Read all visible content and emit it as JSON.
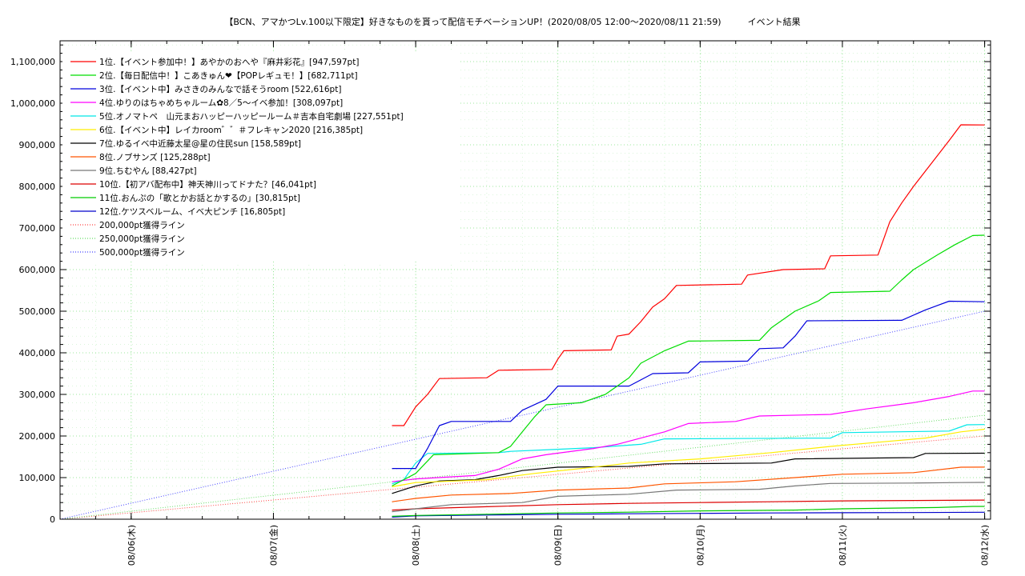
{
  "chart_data": {
    "type": "line",
    "title": "【BCN、アマかつLv.100以下限定】好きなものを貰って配信モチベーションUP！(2020/08/05 12:00〜2020/08/11 21:59)　　　イベント結果",
    "xlabel": "",
    "ylabel": "",
    "xlim": [
      "2020-08-05 12:00",
      "2020-08-12 01:00"
    ],
    "ylim": [
      0,
      1150000
    ],
    "x_ticks": [
      {
        "x": "2020-08-06",
        "label": "08/06(木)"
      },
      {
        "x": "2020-08-07",
        "label": "08/07(金)"
      },
      {
        "x": "2020-08-08",
        "label": "08/08(土)"
      },
      {
        "x": "2020-08-09",
        "label": "08/09(日)"
      },
      {
        "x": "2020-08-10",
        "label": "08/10(月)"
      },
      {
        "x": "2020-08-11",
        "label": "08/11(火)"
      },
      {
        "x": "2020-08-12",
        "label": "08/12(水)"
      }
    ],
    "y_ticks": [
      {
        "y": 0,
        "label": "0"
      },
      {
        "y": 100000,
        "label": "100,000"
      },
      {
        "y": 200000,
        "label": "200,000"
      },
      {
        "y": 300000,
        "label": "300,000"
      },
      {
        "y": 400000,
        "label": "400,000"
      },
      {
        "y": 500000,
        "label": "500,000"
      },
      {
        "y": 600000,
        "label": "600,000"
      },
      {
        "y": 700000,
        "label": "700,000"
      },
      {
        "y": 800000,
        "label": "800,000"
      },
      {
        "y": 900000,
        "label": "900,000"
      },
      {
        "y": 1000000,
        "label": "1,000,000"
      },
      {
        "y": 1100000,
        "label": "1,100,000"
      }
    ],
    "grid": true,
    "legend_position": "top-left",
    "series": [
      {
        "name": "1位.【イベント参加中！】あやかのおへや『麻井彩花』[947,597pt]",
        "color": "#ff0000",
        "points": [
          [
            "2020-08-07 20:00",
            225000
          ],
          [
            "2020-08-07 22:00",
            225000
          ],
          [
            "2020-08-08 00:00",
            270000
          ],
          [
            "2020-08-08 02:00",
            300000
          ],
          [
            "2020-08-08 04:00",
            338000
          ],
          [
            "2020-08-08 12:00",
            340000
          ],
          [
            "2020-08-08 14:00",
            358000
          ],
          [
            "2020-08-08 23:00",
            360000
          ],
          [
            "2020-08-09 00:00",
            385000
          ],
          [
            "2020-08-09 01:00",
            405000
          ],
          [
            "2020-08-09 09:00",
            407000
          ],
          [
            "2020-08-09 10:00",
            440000
          ],
          [
            "2020-08-09 12:00",
            445000
          ],
          [
            "2020-08-09 14:00",
            475000
          ],
          [
            "2020-08-09 16:00",
            510000
          ],
          [
            "2020-08-09 18:00",
            530000
          ],
          [
            "2020-08-09 20:00",
            562000
          ],
          [
            "2020-08-10 07:00",
            565000
          ],
          [
            "2020-08-10 08:00",
            587000
          ],
          [
            "2020-08-10 14:00",
            600000
          ],
          [
            "2020-08-10 21:00",
            602000
          ],
          [
            "2020-08-10 22:00",
            633000
          ],
          [
            "2020-08-11 06:00",
            635000
          ],
          [
            "2020-08-11 08:00",
            715000
          ],
          [
            "2020-08-11 10:00",
            760000
          ],
          [
            "2020-08-11 12:00",
            800000
          ],
          [
            "2020-08-11 15:00",
            855000
          ],
          [
            "2020-08-11 18:00",
            910000
          ],
          [
            "2020-08-11 20:00",
            948000
          ],
          [
            "2020-08-12 00:00",
            947597
          ]
        ]
      },
      {
        "name": "2位.【毎日配信中！】こあきゅん❤【POPレギュモ！】[682,711pt]",
        "color": "#00dd00",
        "points": [
          [
            "2020-08-07 20:00",
            80000
          ],
          [
            "2020-08-08 00:00",
            110000
          ],
          [
            "2020-08-08 03:00",
            155000
          ],
          [
            "2020-08-08 14:00",
            160000
          ],
          [
            "2020-08-08 16:00",
            175000
          ],
          [
            "2020-08-08 18:00",
            210000
          ],
          [
            "2020-08-08 20:00",
            245000
          ],
          [
            "2020-08-08 22:00",
            275000
          ],
          [
            "2020-08-09 04:00",
            280000
          ],
          [
            "2020-08-09 08:00",
            300000
          ],
          [
            "2020-08-09 12:00",
            340000
          ],
          [
            "2020-08-09 14:00",
            375000
          ],
          [
            "2020-08-09 18:00",
            405000
          ],
          [
            "2020-08-09 22:00",
            428000
          ],
          [
            "2020-08-10 10:00",
            430000
          ],
          [
            "2020-08-10 12:00",
            460000
          ],
          [
            "2020-08-10 16:00",
            500000
          ],
          [
            "2020-08-10 20:00",
            525000
          ],
          [
            "2020-08-10 22:00",
            545000
          ],
          [
            "2020-08-11 08:00",
            548000
          ],
          [
            "2020-08-11 10:00",
            575000
          ],
          [
            "2020-08-11 12:00",
            600000
          ],
          [
            "2020-08-11 16:00",
            635000
          ],
          [
            "2020-08-11 19:00",
            660000
          ],
          [
            "2020-08-11 22:00",
            682000
          ],
          [
            "2020-08-12 00:00",
            682711
          ]
        ]
      },
      {
        "name": "3位.【イベント中】みさきのみんなで話そうroom [522,616pt]",
        "color": "#0000dd",
        "points": [
          [
            "2020-08-07 20:00",
            122000
          ],
          [
            "2020-08-08 00:00",
            122000
          ],
          [
            "2020-08-08 02:00",
            170000
          ],
          [
            "2020-08-08 04:00",
            225000
          ],
          [
            "2020-08-08 06:00",
            235000
          ],
          [
            "2020-08-08 16:00",
            235000
          ],
          [
            "2020-08-08 18:00",
            262000
          ],
          [
            "2020-08-08 22:00",
            288000
          ],
          [
            "2020-08-09 00:00",
            320000
          ],
          [
            "2020-08-09 12:00",
            320000
          ],
          [
            "2020-08-09 16:00",
            350000
          ],
          [
            "2020-08-09 22:00",
            352000
          ],
          [
            "2020-08-10 00:00",
            378000
          ],
          [
            "2020-08-10 08:00",
            380000
          ],
          [
            "2020-08-10 10:00",
            410000
          ],
          [
            "2020-08-10 14:00",
            412000
          ],
          [
            "2020-08-10 16:00",
            440000
          ],
          [
            "2020-08-10 18:00",
            477000
          ],
          [
            "2020-08-11 10:00",
            478000
          ],
          [
            "2020-08-11 14:00",
            503000
          ],
          [
            "2020-08-11 18:00",
            524000
          ],
          [
            "2020-08-12 00:00",
            522616
          ]
        ]
      },
      {
        "name": "4位.ゆりのはちゃめちゃルーム✿8／5～イベ参加！[308,097pt]",
        "color": "#ff00ff",
        "points": [
          [
            "2020-08-07 20:00",
            90000
          ],
          [
            "2020-08-08 00:00",
            97000
          ],
          [
            "2020-08-08 10:00",
            105000
          ],
          [
            "2020-08-08 14:00",
            120000
          ],
          [
            "2020-08-08 18:00",
            145000
          ],
          [
            "2020-08-08 22:00",
            155000
          ],
          [
            "2020-08-09 06:00",
            170000
          ],
          [
            "2020-08-09 10:00",
            180000
          ],
          [
            "2020-08-09 14:00",
            195000
          ],
          [
            "2020-08-09 18:00",
            210000
          ],
          [
            "2020-08-09 22:00",
            230000
          ],
          [
            "2020-08-10 06:00",
            235000
          ],
          [
            "2020-08-10 10:00",
            248000
          ],
          [
            "2020-08-10 22:00",
            252000
          ],
          [
            "2020-08-11 04:00",
            265000
          ],
          [
            "2020-08-11 12:00",
            280000
          ],
          [
            "2020-08-11 18:00",
            295000
          ],
          [
            "2020-08-11 22:00",
            308000
          ],
          [
            "2020-08-12 00:00",
            308097
          ]
        ]
      },
      {
        "name": "5位.オノマトペ　山元まおハッピーハッピールーム＃吉本自宅劇場 [227,551pt]",
        "color": "#00e8e8",
        "points": [
          [
            "2020-08-07 20:00",
            85000
          ],
          [
            "2020-08-07 22:00",
            95000
          ],
          [
            "2020-08-08 00:00",
            135000
          ],
          [
            "2020-08-08 02:00",
            158000
          ],
          [
            "2020-08-08 14:00",
            160000
          ],
          [
            "2020-08-08 16:00",
            163000
          ],
          [
            "2020-08-09 00:00",
            168000
          ],
          [
            "2020-08-09 06:00",
            172000
          ],
          [
            "2020-08-09 14:00",
            180000
          ],
          [
            "2020-08-09 18:00",
            193000
          ],
          [
            "2020-08-10 22:00",
            195000
          ],
          [
            "2020-08-11 00:00",
            208000
          ],
          [
            "2020-08-11 18:00",
            212000
          ],
          [
            "2020-08-11 21:00",
            227000
          ],
          [
            "2020-08-12 00:00",
            227551
          ]
        ]
      },
      {
        "name": "6位.【イベント中】レイカroom゛゛＃フレキャン2020 [216,385pt]",
        "color": "#ffee00",
        "points": [
          [
            "2020-08-07 20:00",
            78000
          ],
          [
            "2020-08-08 00:00",
            88000
          ],
          [
            "2020-08-08 12:00",
            95000
          ],
          [
            "2020-08-08 20:00",
            110000
          ],
          [
            "2020-08-09 06:00",
            125000
          ],
          [
            "2020-08-09 12:00",
            135000
          ],
          [
            "2020-08-10 00:00",
            145000
          ],
          [
            "2020-08-10 12:00",
            160000
          ],
          [
            "2020-08-10 22:00",
            175000
          ],
          [
            "2020-08-11 06:00",
            185000
          ],
          [
            "2020-08-11 14:00",
            195000
          ],
          [
            "2020-08-11 20:00",
            210000
          ],
          [
            "2020-08-12 00:00",
            216385
          ]
        ]
      },
      {
        "name": "7位.ゆるイベ中近藤太星@星の住民sun [158,589pt]",
        "color": "#000000",
        "points": [
          [
            "2020-08-07 20:00",
            62000
          ],
          [
            "2020-08-08 00:00",
            80000
          ],
          [
            "2020-08-08 04:00",
            92000
          ],
          [
            "2020-08-08 10:00",
            95000
          ],
          [
            "2020-08-08 14:00",
            105000
          ],
          [
            "2020-08-08 18:00",
            117000
          ],
          [
            "2020-08-09 00:00",
            125000
          ],
          [
            "2020-08-09 12:00",
            127000
          ],
          [
            "2020-08-09 18:00",
            133000
          ],
          [
            "2020-08-10 12:00",
            135000
          ],
          [
            "2020-08-10 16:00",
            145000
          ],
          [
            "2020-08-11 12:00",
            148000
          ],
          [
            "2020-08-11 14:00",
            158000
          ],
          [
            "2020-08-12 00:00",
            158589
          ]
        ]
      },
      {
        "name": "8位.ノブサンズ [125,288pt]",
        "color": "#ff5500",
        "points": [
          [
            "2020-08-07 20:00",
            42000
          ],
          [
            "2020-08-08 00:00",
            50000
          ],
          [
            "2020-08-08 06:00",
            58000
          ],
          [
            "2020-08-08 16:00",
            62000
          ],
          [
            "2020-08-09 00:00",
            70000
          ],
          [
            "2020-08-09 12:00",
            75000
          ],
          [
            "2020-08-09 18:00",
            85000
          ],
          [
            "2020-08-10 06:00",
            90000
          ],
          [
            "2020-08-10 16:00",
            100000
          ],
          [
            "2020-08-11 00:00",
            108000
          ],
          [
            "2020-08-11 12:00",
            112000
          ],
          [
            "2020-08-11 20:00",
            125000
          ],
          [
            "2020-08-12 00:00",
            125288
          ]
        ]
      },
      {
        "name": "9位.ちむやん [88,427pt]",
        "color": "#777777",
        "points": [
          [
            "2020-08-07 20:00",
            18000
          ],
          [
            "2020-08-08 00:00",
            25000
          ],
          [
            "2020-08-08 06:00",
            35000
          ],
          [
            "2020-08-08 18:00",
            40000
          ],
          [
            "2020-08-09 00:00",
            55000
          ],
          [
            "2020-08-09 12:00",
            60000
          ],
          [
            "2020-08-09 20:00",
            70000
          ],
          [
            "2020-08-10 10:00",
            72000
          ],
          [
            "2020-08-10 16:00",
            80000
          ],
          [
            "2020-08-10 22:00",
            86000
          ],
          [
            "2020-08-11 12:00",
            87000
          ],
          [
            "2020-08-11 20:00",
            88000
          ],
          [
            "2020-08-12 00:00",
            88427
          ]
        ]
      },
      {
        "name": "10位.【初アバ配布中】神天神川ってドナた？[46,041pt]",
        "color": "#dd0000",
        "points": [
          [
            "2020-08-07 20:00",
            22000
          ],
          [
            "2020-08-08 00:00",
            25000
          ],
          [
            "2020-08-08 12:00",
            30000
          ],
          [
            "2020-08-09 00:00",
            35000
          ],
          [
            "2020-08-09 12:00",
            38000
          ],
          [
            "2020-08-10 00:00",
            40000
          ],
          [
            "2020-08-10 12:00",
            42000
          ],
          [
            "2020-08-11 00:00",
            44000
          ],
          [
            "2020-08-11 12:00",
            45000
          ],
          [
            "2020-08-12 00:00",
            46041
          ]
        ]
      },
      {
        "name": "11位.おんぷの「歌とかお話とかするの」[30,815pt]",
        "color": "#00cc00",
        "points": [
          [
            "2020-08-07 20:00",
            7000
          ],
          [
            "2020-08-08 00:00",
            9000
          ],
          [
            "2020-08-08 12:00",
            12000
          ],
          [
            "2020-08-09 00:00",
            15000
          ],
          [
            "2020-08-09 12:00",
            17000
          ],
          [
            "2020-08-10 00:00",
            20000
          ],
          [
            "2020-08-10 16:00",
            22000
          ],
          [
            "2020-08-11 00:00",
            25000
          ],
          [
            "2020-08-11 16:00",
            28000
          ],
          [
            "2020-08-11 22:00",
            30815
          ],
          [
            "2020-08-12 00:00",
            30815
          ]
        ]
      },
      {
        "name": "12位.ケツスベルーム、イベ大ピンチ [16,805pt]",
        "color": "#0000cc",
        "points": [
          [
            "2020-08-07 20:00",
            5000
          ],
          [
            "2020-08-08 00:00",
            8000
          ],
          [
            "2020-08-08 12:00",
            10000
          ],
          [
            "2020-08-09 00:00",
            12000
          ],
          [
            "2020-08-09 12:00",
            13000
          ],
          [
            "2020-08-10 00:00",
            14000
          ],
          [
            "2020-08-10 12:00",
            15000
          ],
          [
            "2020-08-11 00:00",
            15500
          ],
          [
            "2020-08-11 12:00",
            16000
          ],
          [
            "2020-08-12 00:00",
            16805
          ]
        ]
      }
    ],
    "reference_lines": [
      {
        "name": "200,000pt獲得ライン",
        "color": "#ff4444",
        "points": [
          [
            "2020-08-05 12:00",
            0
          ],
          [
            "2020-08-12 00:00",
            200000
          ]
        ]
      },
      {
        "name": "250,000pt獲得ライン",
        "color": "#66dd66",
        "points": [
          [
            "2020-08-05 12:00",
            0
          ],
          [
            "2020-08-12 00:00",
            250000
          ]
        ]
      },
      {
        "name": "500,000pt獲得ライン",
        "color": "#4444ff",
        "points": [
          [
            "2020-08-05 12:00",
            0
          ],
          [
            "2020-08-12 00:00",
            500000
          ]
        ]
      }
    ]
  }
}
